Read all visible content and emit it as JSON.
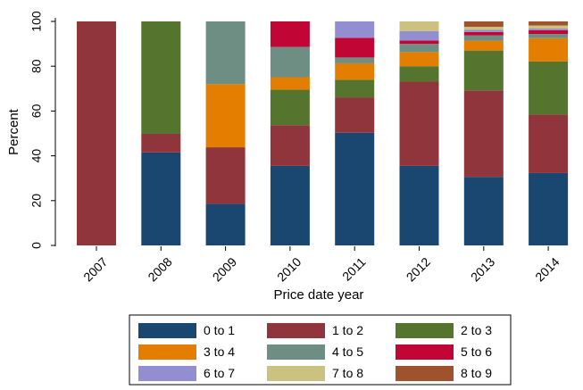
{
  "chart_data": {
    "type": "bar",
    "stacked": true,
    "xlabel": "Price date year",
    "ylabel": "Percent",
    "ylim": [
      0,
      100
    ],
    "yticks": [
      0,
      20,
      40,
      60,
      80,
      100
    ],
    "grid": false,
    "legend_position": "bottom",
    "categories": [
      "2007",
      "2008",
      "2009",
      "2010",
      "2011",
      "2012",
      "2013",
      "2014"
    ],
    "series": [
      {
        "name": "0 to 1",
        "color": "#1a476f",
        "values": [
          0,
          41.5,
          18.5,
          35.5,
          50.3,
          35.5,
          30.6,
          32.3
        ]
      },
      {
        "name": "1 to 2",
        "color": "#90353b",
        "values": [
          100,
          8.3,
          25.3,
          18.2,
          15.8,
          37.6,
          38.6,
          26.1
        ]
      },
      {
        "name": "2 to 3",
        "color": "#55752f",
        "values": [
          0,
          50.2,
          0,
          15.8,
          7.9,
          6.9,
          17.8,
          23.7
        ]
      },
      {
        "name": "3 to 4",
        "color": "#e37e00",
        "values": [
          0,
          0,
          28.2,
          5.6,
          7.3,
          6.3,
          4.4,
          10.4
        ]
      },
      {
        "name": "4 to 5",
        "color": "#6e8e84",
        "values": [
          0,
          0,
          28,
          13.5,
          2.6,
          3.7,
          2.4,
          1.9
        ]
      },
      {
        "name": "5 to 6",
        "color": "#c10534",
        "values": [
          0,
          0,
          0,
          11.4,
          8.8,
          1.5,
          1.5,
          1.7
        ]
      },
      {
        "name": "6 to 7",
        "color": "#938dd2",
        "values": [
          0,
          0,
          0,
          0,
          7.3,
          4.2,
          0.9,
          0.7
        ]
      },
      {
        "name": "7 to 8",
        "color": "#cac27e",
        "values": [
          0,
          0,
          0,
          0,
          0,
          4.3,
          1.4,
          1.4
        ]
      },
      {
        "name": "8 to 9",
        "color": "#a0522d",
        "values": [
          0,
          0,
          0,
          0,
          0,
          0,
          2.4,
          1.8
        ]
      }
    ]
  }
}
